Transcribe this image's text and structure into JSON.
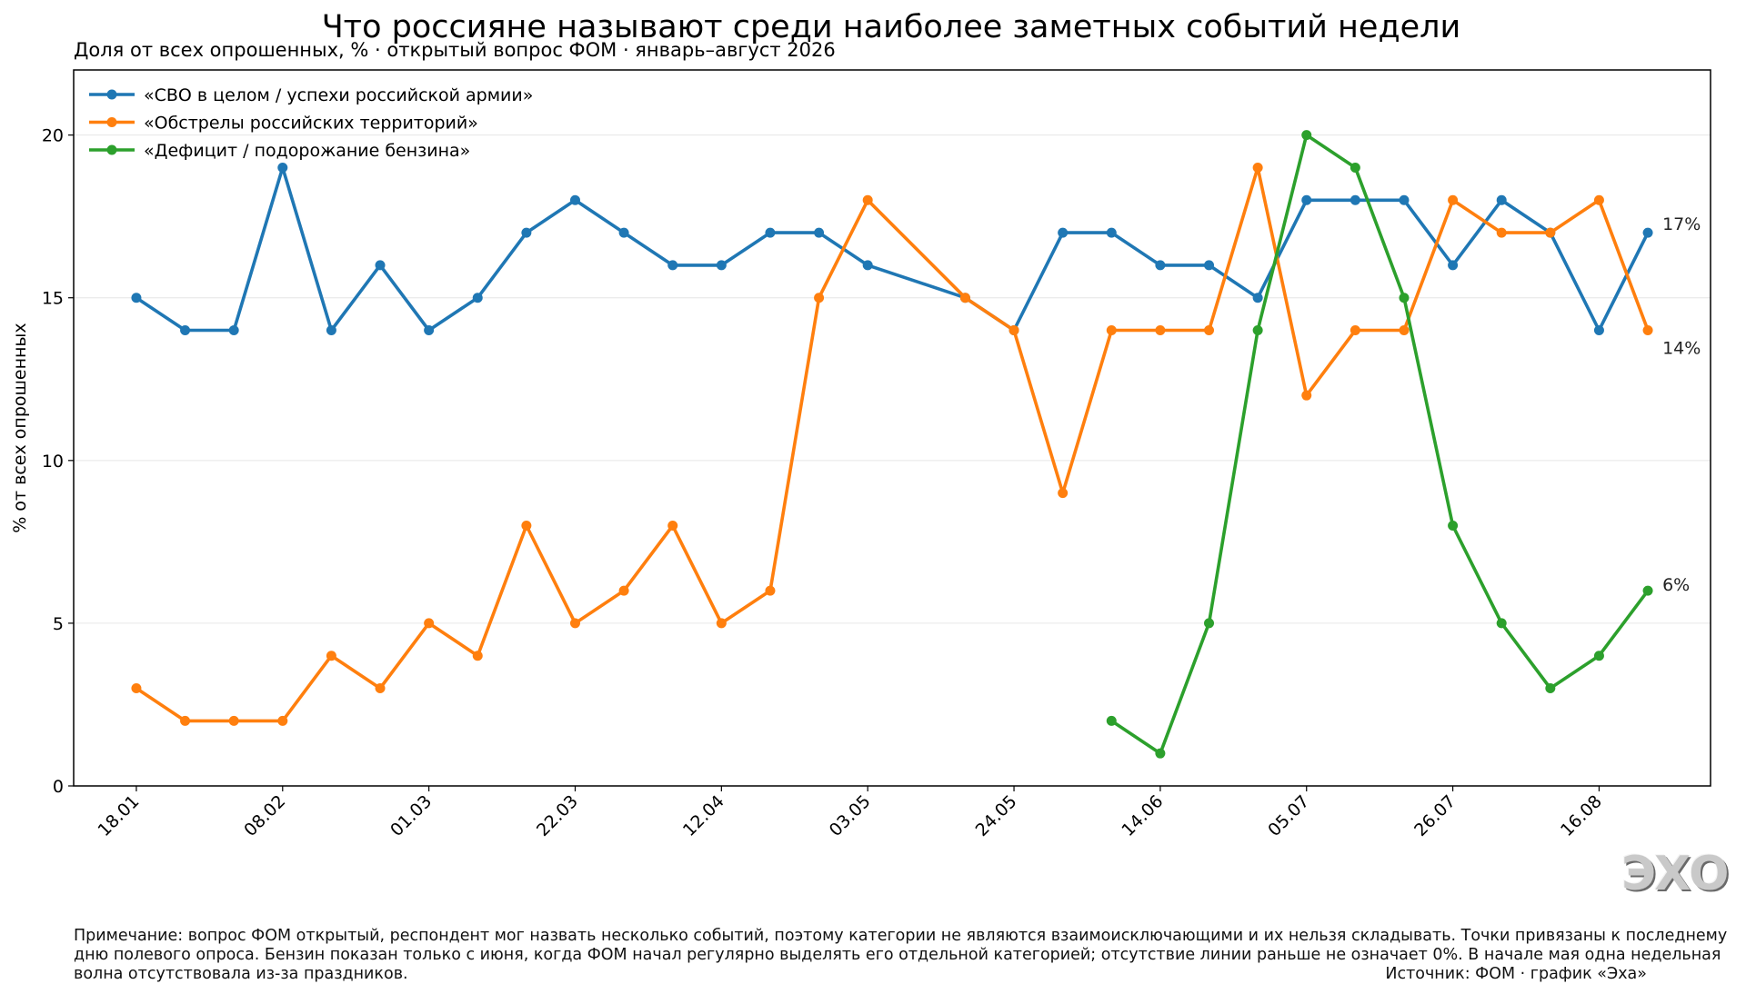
{
  "title": "Что россияне называют среди наиболее заметных событий недели",
  "subtitle": "Доля от всех опрошенных, % · открытый вопрос ФОМ · январь–август 2026",
  "logo_text": "ЭХО",
  "note": "Примечание: вопрос ФОМ открытый, респондент мог назвать несколько событий, поэтому категории не являются взаимоисключающими и их нельзя складывать. Точки привязаны к последнему дню полевого опроса. Бензин показан только с июня, когда ФОМ начал регулярно выделять его отдельной категорией; отсутствие линии раньше не означает 0%. В начале мая одна недельная волна отсутствовала из-за праздников.",
  "source": "Источник: ФОМ · график «Эха»",
  "colors": {
    "svo": "#1f77b4",
    "strikes": "#ff7f0e",
    "fuel": "#2ca02c"
  },
  "chart_data": {
    "type": "line",
    "ylabel": "% от всех опрошенных",
    "ylim": [
      0,
      22
    ],
    "yticks": [
      0,
      5,
      10,
      15,
      20
    ],
    "xticks": [
      "18.01",
      "08.02",
      "01.03",
      "22.03",
      "12.04",
      "03.05",
      "24.05",
      "14.06",
      "05.07",
      "26.07",
      "16.08"
    ],
    "x_dates": [
      "2026-01-18",
      "2026-01-25",
      "2026-02-01",
      "2026-02-08",
      "2026-02-15",
      "2026-02-22",
      "2026-03-01",
      "2026-03-08",
      "2026-03-15",
      "2026-03-22",
      "2026-03-29",
      "2026-04-05",
      "2026-04-12",
      "2026-04-19",
      "2026-04-26",
      "2026-05-03",
      "2026-05-17",
      "2026-05-24",
      "2026-05-31",
      "2026-06-07",
      "2026-06-14",
      "2026-06-21",
      "2026-06-28",
      "2026-07-05",
      "2026-07-12",
      "2026-07-19",
      "2026-07-26",
      "2026-08-02",
      "2026-08-09",
      "2026-08-16",
      "2026-08-23"
    ],
    "grid": "horizontal",
    "legend_position": "top-left",
    "series": [
      {
        "name": "«СВО в целом / успехи российской армии»",
        "color": "#1f77b4",
        "end_label": "17%",
        "values": [
          15,
          14,
          14,
          19,
          14,
          16,
          14,
          15,
          17,
          18,
          17,
          16,
          16,
          17,
          17,
          16,
          15,
          14,
          17,
          17,
          16,
          16,
          15,
          18,
          18,
          18,
          16,
          18,
          17,
          14,
          17
        ]
      },
      {
        "name": "«Обстрелы российских территорий»",
        "color": "#ff7f0e",
        "end_label": "14%",
        "values": [
          3,
          2,
          2,
          2,
          4,
          3,
          5,
          4,
          8,
          5,
          6,
          8,
          5,
          6,
          15,
          18,
          15,
          14,
          9,
          14,
          14,
          14,
          19,
          12,
          14,
          14,
          18,
          17,
          17,
          18,
          14
        ]
      },
      {
        "name": "«Дефицит / подорожание бензина»",
        "color": "#2ca02c",
        "end_label": "6%",
        "values": [
          null,
          null,
          null,
          null,
          null,
          null,
          null,
          null,
          null,
          null,
          null,
          null,
          null,
          null,
          null,
          null,
          null,
          null,
          null,
          2,
          1,
          5,
          14,
          20,
          19,
          15,
          8,
          5,
          3,
          4,
          6
        ]
      }
    ]
  }
}
